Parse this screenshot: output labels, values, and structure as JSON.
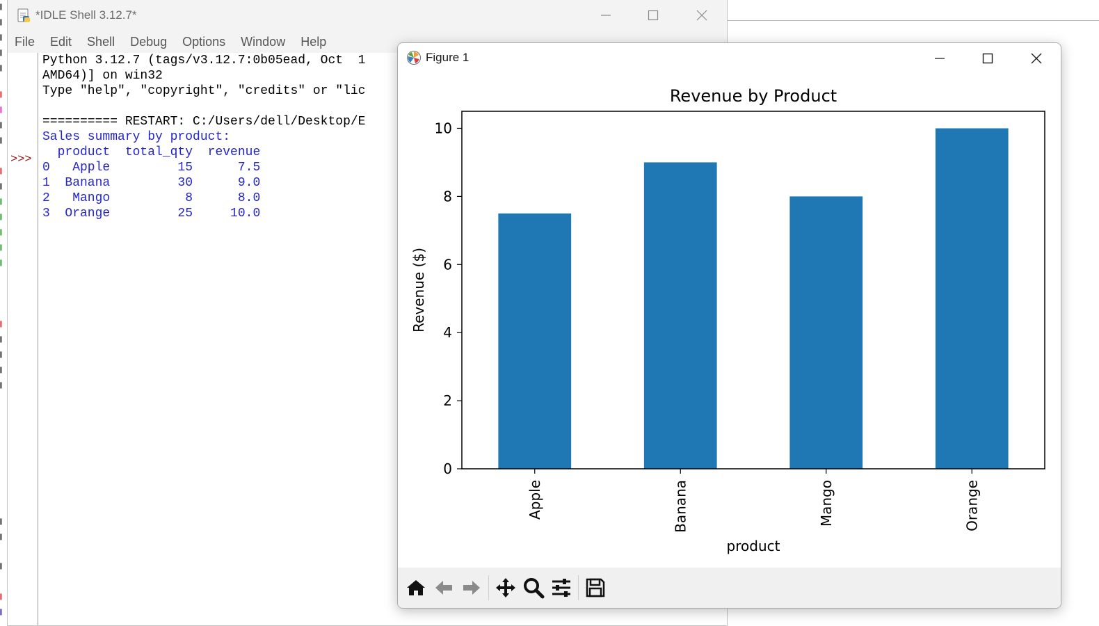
{
  "idle": {
    "title": "*IDLE Shell 3.12.7*",
    "menu": [
      "File",
      "Edit",
      "Shell",
      "Debug",
      "Options",
      "Window",
      "Help"
    ],
    "prompt": ">>>",
    "lines": [
      {
        "text": "Python 3.12.7 (tags/v3.12.7:0b05ead, Oct  1",
        "color": "black"
      },
      {
        "text": "AMD64)] on win32",
        "color": "black"
      },
      {
        "text": "Type \"help\", \"copyright\", \"credits\" or \"lic",
        "color": "black"
      },
      {
        "text": "",
        "color": "black"
      },
      {
        "text": "========== RESTART: C:/Users/dell/Desktop/E",
        "color": "black"
      },
      {
        "text": "Sales summary by product:",
        "color": "blue"
      },
      {
        "text": "  product  total_qty  revenue",
        "color": "blue"
      },
      {
        "text": "0   Apple         15      7.5",
        "color": "blue"
      },
      {
        "text": "1  Banana         30      9.0",
        "color": "blue"
      },
      {
        "text": "2   Mango          8      8.0",
        "color": "blue"
      },
      {
        "text": "3  Orange         25     10.0",
        "color": "blue"
      }
    ]
  },
  "figure": {
    "title": "Figure 1"
  },
  "chart_data": {
    "type": "bar",
    "title": "Revenue by Product",
    "xlabel": "product",
    "ylabel": "Revenue ($)",
    "categories": [
      "Apple",
      "Banana",
      "Mango",
      "Orange"
    ],
    "values": [
      7.5,
      9.0,
      8.0,
      10.0
    ],
    "ylim": [
      0,
      10.5
    ],
    "yticks": [
      0,
      2,
      4,
      6,
      8,
      10
    ],
    "bar_color": "#1f77b4",
    "grid": false,
    "legend": "none"
  },
  "toolbar": {
    "tools": [
      "home-icon",
      "back-arrow-icon",
      "forward-arrow-icon",
      "pan-icon",
      "zoom-icon",
      "configure-subplots-icon",
      "save-icon"
    ]
  },
  "colors": {
    "bar": "#1f77b4",
    "shell_output": "#2323d0",
    "prompt": "#8b1a1a"
  }
}
